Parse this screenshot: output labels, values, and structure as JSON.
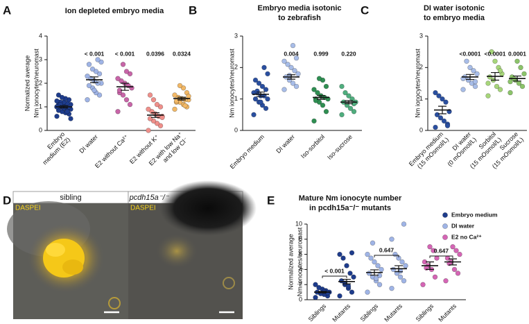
{
  "chart_data": [
    {
      "type": "dotplot",
      "panel": "A",
      "title": [
        "Ion depleted embryo media"
      ],
      "ylabel": [
        "Normalized average",
        "Nm ionocytes/neuromast"
      ],
      "ylim": [
        0,
        4
      ],
      "yticks": [
        0,
        1,
        2,
        3,
        4
      ],
      "groups": [
        {
          "label": [
            "Embryo",
            "medium (E2)"
          ],
          "color": "#1e3c8c",
          "values": [
            0.6,
            0.7,
            0.75,
            0.8,
            0.85,
            0.9,
            0.9,
            0.95,
            1.0,
            1.0,
            1.0,
            1.05,
            1.05,
            1.1,
            1.1,
            1.15,
            1.2,
            1.2,
            1.25,
            1.3,
            1.35,
            1.4,
            1.5,
            0.5,
            0.8,
            0.95,
            1.1,
            1.0
          ],
          "mean": 1.0,
          "sem": 0.05
        },
        {
          "label": [
            "DI water"
          ],
          "color": "#9fb4e6",
          "values": [
            1.3,
            1.5,
            1.6,
            1.8,
            1.9,
            2.0,
            2.0,
            2.1,
            2.2,
            2.3,
            2.4,
            2.5,
            2.6,
            2.8,
            2.9,
            3.0,
            1.7
          ],
          "mean": 2.15,
          "sem": 0.12,
          "p": "< 0.001"
        },
        {
          "label": [
            "E2 without Ca²⁺"
          ],
          "color": "#c865a8",
          "values": [
            0.8,
            1.1,
            1.3,
            1.5,
            1.6,
            1.8,
            1.9,
            2.0,
            2.1,
            2.2,
            2.4,
            2.5,
            2.8,
            1.7
          ],
          "mean": 1.85,
          "sem": 0.15,
          "p": "< 0.001"
        },
        {
          "label": [
            "E2 without K⁺"
          ],
          "color": "#ef8f8a",
          "values": [
            0.0,
            0.2,
            0.3,
            0.4,
            0.5,
            0.6,
            0.6,
            0.7,
            0.8,
            0.9,
            1.0,
            1.1,
            1.3,
            1.5,
            0.55
          ],
          "mean": 0.65,
          "sem": 0.1,
          "p": "0.0396"
        },
        {
          "label": [
            "E2 with low Na⁺",
            "and low Cl⁻"
          ],
          "color": "#f2b866",
          "values": [
            0.9,
            1.0,
            1.1,
            1.2,
            1.2,
            1.3,
            1.3,
            1.35,
            1.4,
            1.5,
            1.6,
            1.8,
            1.9,
            1.25,
            1.45,
            1.05
          ],
          "mean": 1.35,
          "sem": 0.06,
          "p": "0.0324"
        }
      ]
    },
    {
      "type": "dotplot",
      "panel": "B",
      "title": [
        "Embryo media isotonic",
        "to zebrafish"
      ],
      "ylabel": [
        "Nm ionocytes/neuromast"
      ],
      "ylim": [
        0,
        3
      ],
      "yticks": [
        0,
        1,
        2,
        3
      ],
      "groups": [
        {
          "label": [
            "Embryo medium"
          ],
          "color": "#2a4fa0",
          "values": [
            0.5,
            0.7,
            0.8,
            0.9,
            1.0,
            1.0,
            1.1,
            1.1,
            1.2,
            1.2,
            1.3,
            1.4,
            1.5,
            1.6,
            1.8,
            2.0,
            0.9,
            1.25
          ],
          "mean": 1.15,
          "sem": 0.07
        },
        {
          "label": [
            "DI water"
          ],
          "color": "#a8bde8",
          "values": [
            1.3,
            1.4,
            1.5,
            1.6,
            1.7,
            1.8,
            1.9,
            2.0,
            2.1,
            2.2,
            2.3,
            2.7,
            1.75
          ],
          "mean": 1.7,
          "sem": 0.07,
          "p": "0.004"
        },
        {
          "label": [
            "Iso-sorbitol"
          ],
          "color": "#2f8f52",
          "values": [
            0.3,
            0.6,
            0.8,
            0.9,
            1.0,
            1.0,
            1.05,
            1.1,
            1.2,
            1.3,
            1.4,
            1.6,
            1.65,
            0.95
          ],
          "mean": 1.05,
          "sem": 0.06,
          "p": "0.999"
        },
        {
          "label": [
            "Iso-sucrose"
          ],
          "color": "#4fae7e",
          "values": [
            0.5,
            0.6,
            0.7,
            0.8,
            0.9,
            0.9,
            1.0,
            1.1,
            1.2,
            1.4,
            0.85
          ],
          "mean": 0.9,
          "sem": 0.05,
          "p": "0.220"
        }
      ]
    },
    {
      "type": "dotplot",
      "panel": "C",
      "title": [
        "DI water isotonic",
        "to embryo media"
      ],
      "ylabel": [
        "Nm ionocytes/neuromast"
      ],
      "ylim": [
        0,
        3
      ],
      "yticks": [
        0,
        1,
        2,
        3
      ],
      "groups": [
        {
          "label": [
            "Embryo medium",
            "(15 mOsmol/L)"
          ],
          "color": "#2a4fa0",
          "values": [
            0.1,
            0.2,
            0.3,
            0.4,
            0.5,
            0.6,
            0.9,
            1.0,
            1.1,
            1.2,
            0.15
          ],
          "mean": 0.65,
          "sem": 0.12
        },
        {
          "label": [
            "DI water",
            "(0 mOsmol/L)"
          ],
          "color": "#a8bde8",
          "values": [
            1.3,
            1.4,
            1.5,
            1.6,
            1.7,
            1.8,
            1.9,
            2.0,
            2.2,
            1.65,
            1.55
          ],
          "mean": 1.7,
          "sem": 0.08,
          "p": "<0.0001"
        },
        {
          "label": [
            "Sorbitol",
            "(15 mOsmol/L)"
          ],
          "color": "#a7d67a",
          "values": [
            1.1,
            1.3,
            1.4,
            1.6,
            1.7,
            1.8,
            2.0,
            2.2,
            2.5,
            1.5,
            1.9
          ],
          "mean": 1.72,
          "sem": 0.12,
          "p": "<0.0001"
        },
        {
          "label": [
            "Sucrose",
            "(15 mOsmol/L)"
          ],
          "color": "#8cc46a",
          "values": [
            1.2,
            1.4,
            1.5,
            1.6,
            1.7,
            1.8,
            2.0,
            2.2,
            1.65,
            1.55
          ],
          "mean": 1.65,
          "sem": 0.08,
          "p": "0.0001"
        }
      ]
    },
    {
      "type": "paired-dotplot",
      "panel": "E",
      "title": [
        "Mature Nm ionocyte number",
        "in pcdh15a⁻/⁻ mutants"
      ],
      "ylabel": [
        "Normalized average",
        "Nm ionocytes/neuromast"
      ],
      "ylim": [
        0,
        10
      ],
      "yticks": [
        0,
        2,
        4,
        6,
        8,
        10
      ],
      "categories": [
        "Siblings",
        "Mutants"
      ],
      "series": [
        {
          "name": "Embryo medium",
          "color": "#1e3c8c",
          "p": "< 0.001",
          "groups": [
            {
              "values": [
                0.3,
                0.5,
                0.7,
                0.8,
                1.0,
                1.0,
                1.2,
                1.4,
                1.6,
                2.0,
                0.9,
                1.1
              ],
              "mean": 1.0,
              "sem": 0.1
            },
            {
              "values": [
                0.5,
                1.0,
                1.5,
                2.0,
                2.5,
                3.0,
                3.5,
                4.5,
                5.5,
                6.0,
                6.2,
                1.8,
                2.2
              ],
              "mean": 2.4,
              "sem": 0.3
            }
          ]
        },
        {
          "name": "DI water",
          "color": "#9fb4e6",
          "p": "0.647",
          "groups": [
            {
              "values": [
                1.0,
                2.0,
                2.5,
                3.0,
                3.5,
                4.0,
                4.5,
                5.0,
                5.5,
                6.0,
                3.2,
                2.8,
                7.5
              ],
              "mean": 3.6,
              "sem": 0.35
            },
            {
              "values": [
                1.5,
                2.5,
                3.0,
                3.5,
                4.0,
                4.5,
                5.0,
                5.5,
                6.0,
                8.0,
                10.0,
                3.8
              ],
              "mean": 4.1,
              "sem": 0.4
            }
          ]
        },
        {
          "name": "E2 no Ca²⁺",
          "color": "#d565b5",
          "p": "0.647",
          "groups": [
            {
              "values": [
                2.0,
                3.0,
                4.0,
                4.5,
                5.0,
                5.5,
                6.5,
                7.0,
                4.2
              ],
              "mean": 4.5,
              "sem": 0.5
            },
            {
              "values": [
                2.5,
                3.5,
                4.0,
                5.0,
                5.5,
                6.0,
                6.5,
                7.0,
                4.8
              ],
              "mean": 5.0,
              "sem": 0.4
            }
          ]
        }
      ]
    }
  ],
  "image_panel": {
    "panel": "D",
    "left_label": "sibling",
    "right_label": "pcdh15a⁻/⁻",
    "stain": "DASPEI"
  }
}
